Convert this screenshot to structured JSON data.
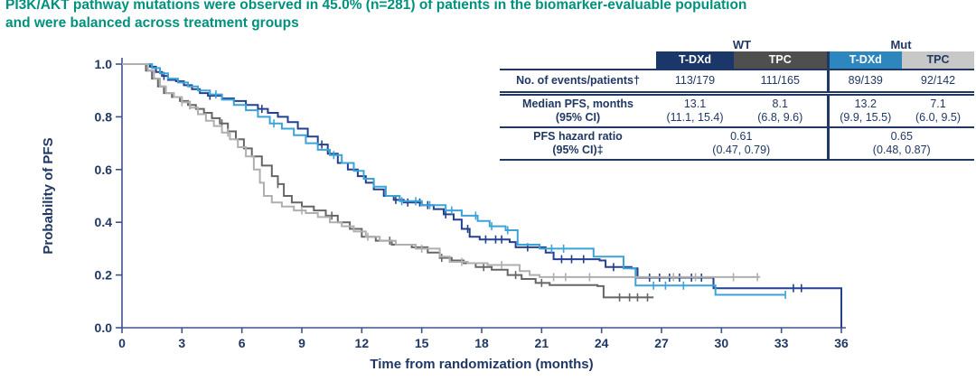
{
  "title": {
    "line1": "PI3K/AKT pathway mutations were observed in 45.0% (n=281) of patients in the biomarker-evaluable population",
    "line2": "and were balanced across treatment groups",
    "color": "#00917E"
  },
  "table": {
    "group_headers": [
      "WT",
      "Mut"
    ],
    "col_headers": [
      "T-DXd",
      "TPC",
      "T-DXd",
      "TPC"
    ],
    "col_colors": {
      "wt_tdxd": "#1B3668",
      "wt_tpc": "#4F4F4F",
      "mut_tdxd": "#2E86BE",
      "mut_tpc": "#C8C8C8"
    },
    "text_color": "#1F3864",
    "rows": {
      "events": {
        "label": "No. of events/patients†",
        "values": [
          "113/179",
          "111/165",
          "89/139",
          "92/142"
        ]
      },
      "median": {
        "label": "Median PFS, months",
        "label2": "(95% CI)",
        "values": [
          "13.1",
          "8.1",
          "13.2",
          "7.1"
        ],
        "values2": [
          "(11.1, 15.4)",
          "(6.8, 9.6)",
          "(9.9, 15.5)",
          "(6.0, 9.5)"
        ]
      },
      "hr": {
        "label": "PFS hazard ratio",
        "label2": "(95% CI)‡",
        "wt_value": "0.61",
        "wt_value2": "(0.47, 0.79)",
        "mut_value": "0.65",
        "mut_value2": "(0.48, 0.87)"
      }
    }
  },
  "chart_data": {
    "type": "line",
    "subtype": "kaplan-meier-step",
    "xlabel": "Time from randomization (months)",
    "ylabel": "Probability of PFS",
    "xlim": [
      0,
      36
    ],
    "ylim": [
      0,
      1
    ],
    "xticks": [
      0,
      3,
      6,
      9,
      12,
      15,
      18,
      21,
      24,
      27,
      30,
      33,
      36
    ],
    "yticks": [
      0.0,
      0.2,
      0.4,
      0.6,
      0.8,
      1.0
    ],
    "grid": false,
    "legend": "none (series identified by table header colors)",
    "axis_color": "#3E5488",
    "series": [
      {
        "name": "T-DXd (WT)",
        "key": "wt-tdxd",
        "color": "#24408E",
        "median_pfs_months": 13.1,
        "steps": [
          [
            0,
            1
          ],
          [
            1.4,
            0.99
          ],
          [
            1.7,
            0.97
          ],
          [
            2.0,
            0.955
          ],
          [
            2.3,
            0.94
          ],
          [
            2.7,
            0.935
          ],
          [
            3.1,
            0.92
          ],
          [
            3.5,
            0.905
          ],
          [
            3.9,
            0.89
          ],
          [
            4.3,
            0.88
          ],
          [
            5.0,
            0.87
          ],
          [
            5.6,
            0.86
          ],
          [
            6.2,
            0.845
          ],
          [
            6.8,
            0.83
          ],
          [
            7.3,
            0.815
          ],
          [
            7.8,
            0.8
          ],
          [
            8.3,
            0.78
          ],
          [
            8.8,
            0.755
          ],
          [
            9.3,
            0.725
          ],
          [
            9.8,
            0.695
          ],
          [
            10.3,
            0.66
          ],
          [
            10.8,
            0.625
          ],
          [
            11.3,
            0.6
          ],
          [
            11.8,
            0.575
          ],
          [
            12.2,
            0.55
          ],
          [
            12.6,
            0.525
          ],
          [
            13.1,
            0.5
          ],
          [
            13.6,
            0.485
          ],
          [
            14.1,
            0.475
          ],
          [
            15.0,
            0.465
          ],
          [
            15.6,
            0.45
          ],
          [
            16.1,
            0.43
          ],
          [
            16.6,
            0.41
          ],
          [
            17.0,
            0.375
          ],
          [
            17.4,
            0.345
          ],
          [
            17.9,
            0.335
          ],
          [
            19.4,
            0.325
          ],
          [
            19.7,
            0.305
          ],
          [
            21.2,
            0.285
          ],
          [
            21.6,
            0.26
          ],
          [
            23.9,
            0.255
          ],
          [
            24.2,
            0.23
          ],
          [
            25.5,
            0.225
          ],
          [
            25.8,
            0.19
          ],
          [
            29.4,
            0.19
          ],
          [
            29.6,
            0.15
          ],
          [
            36,
            0.15
          ],
          [
            36,
            0
          ]
        ],
        "censors": [
          2.1,
          4.4,
          7.0,
          10.0,
          13.7,
          14.3,
          14.9,
          15.3,
          16.2,
          17.3,
          18.2,
          18.7,
          19.0,
          20.3,
          22.0,
          22.5,
          23.1,
          24.6,
          26.4,
          26.9,
          27.4,
          27.9,
          28.5,
          29.0,
          33.6,
          34.0
        ]
      },
      {
        "name": "TPC (WT)",
        "key": "wt-tpc",
        "color": "#666666",
        "median_pfs_months": 8.1,
        "steps": [
          [
            0,
            1
          ],
          [
            1.2,
            0.975
          ],
          [
            1.5,
            0.945
          ],
          [
            1.8,
            0.915
          ],
          [
            2.1,
            0.89
          ],
          [
            2.5,
            0.875
          ],
          [
            2.9,
            0.86
          ],
          [
            3.3,
            0.845
          ],
          [
            3.7,
            0.83
          ],
          [
            4.1,
            0.815
          ],
          [
            4.5,
            0.795
          ],
          [
            4.9,
            0.775
          ],
          [
            5.3,
            0.745
          ],
          [
            5.7,
            0.715
          ],
          [
            6.1,
            0.68
          ],
          [
            6.5,
            0.65
          ],
          [
            7.0,
            0.615
          ],
          [
            7.5,
            0.575
          ],
          [
            7.8,
            0.545
          ],
          [
            8.1,
            0.5
          ],
          [
            8.5,
            0.475
          ],
          [
            9.0,
            0.46
          ],
          [
            9.6,
            0.445
          ],
          [
            10.2,
            0.425
          ],
          [
            10.8,
            0.4
          ],
          [
            11.4,
            0.375
          ],
          [
            12.0,
            0.345
          ],
          [
            12.7,
            0.33
          ],
          [
            13.5,
            0.315
          ],
          [
            14.5,
            0.305
          ],
          [
            15.3,
            0.285
          ],
          [
            15.9,
            0.265
          ],
          [
            16.5,
            0.255
          ],
          [
            17.1,
            0.245
          ],
          [
            17.7,
            0.23
          ],
          [
            18.5,
            0.22
          ],
          [
            19.3,
            0.2
          ],
          [
            20.0,
            0.185
          ],
          [
            20.7,
            0.17
          ],
          [
            21.4,
            0.162
          ],
          [
            23.8,
            0.158
          ],
          [
            24.1,
            0.115
          ],
          [
            26.6,
            0.115
          ]
        ],
        "censors": [
          3.4,
          5.0,
          7.8,
          10.5,
          13.4,
          16.0,
          18.1,
          19.7,
          21.0,
          24.9,
          25.4,
          25.8,
          26.3
        ]
      },
      {
        "name": "T-DXd (Mut)",
        "key": "mut-tdxd",
        "color": "#3BA3D8",
        "median_pfs_months": 13.2,
        "steps": [
          [
            0,
            1
          ],
          [
            1.5,
            0.985
          ],
          [
            1.9,
            0.965
          ],
          [
            2.3,
            0.945
          ],
          [
            2.8,
            0.93
          ],
          [
            3.3,
            0.915
          ],
          [
            3.8,
            0.9
          ],
          [
            4.4,
            0.885
          ],
          [
            5.0,
            0.865
          ],
          [
            5.6,
            0.845
          ],
          [
            6.2,
            0.825
          ],
          [
            6.8,
            0.8
          ],
          [
            7.4,
            0.775
          ],
          [
            8.0,
            0.755
          ],
          [
            8.6,
            0.73
          ],
          [
            9.2,
            0.7
          ],
          [
            9.8,
            0.675
          ],
          [
            10.4,
            0.655
          ],
          [
            11.0,
            0.625
          ],
          [
            11.6,
            0.595
          ],
          [
            12.1,
            0.565
          ],
          [
            12.6,
            0.535
          ],
          [
            13.2,
            0.5
          ],
          [
            13.9,
            0.48
          ],
          [
            15.0,
            0.465
          ],
          [
            16.2,
            0.445
          ],
          [
            17.0,
            0.425
          ],
          [
            17.8,
            0.405
          ],
          [
            18.4,
            0.385
          ],
          [
            19.2,
            0.37
          ],
          [
            19.8,
            0.315
          ],
          [
            20.9,
            0.3
          ],
          [
            23.6,
            0.27
          ],
          [
            25.1,
            0.225
          ],
          [
            25.7,
            0.16
          ],
          [
            29.5,
            0.16
          ],
          [
            29.7,
            0.125
          ],
          [
            33.2,
            0.125
          ]
        ],
        "censors": [
          4.7,
          7.6,
          10.6,
          14.0,
          14.7,
          15.4,
          16.5,
          17.7,
          18.5,
          19.3,
          21.5,
          22.1,
          26.6,
          27.2,
          28.1,
          33.2
        ]
      },
      {
        "name": "TPC (Mut)",
        "key": "mut-tpc",
        "color": "#AFAFAF",
        "median_pfs_months": 7.1,
        "steps": [
          [
            0,
            1
          ],
          [
            1.3,
            0.975
          ],
          [
            1.6,
            0.945
          ],
          [
            1.9,
            0.915
          ],
          [
            2.2,
            0.89
          ],
          [
            2.6,
            0.875
          ],
          [
            3.0,
            0.855
          ],
          [
            3.4,
            0.835
          ],
          [
            3.8,
            0.81
          ],
          [
            4.2,
            0.785
          ],
          [
            4.6,
            0.765
          ],
          [
            5.0,
            0.74
          ],
          [
            5.4,
            0.715
          ],
          [
            5.8,
            0.685
          ],
          [
            6.2,
            0.65
          ],
          [
            6.6,
            0.6
          ],
          [
            6.9,
            0.55
          ],
          [
            7.1,
            0.5
          ],
          [
            7.5,
            0.475
          ],
          [
            8.0,
            0.46
          ],
          [
            8.6,
            0.445
          ],
          [
            9.2,
            0.435
          ],
          [
            9.8,
            0.42
          ],
          [
            10.4,
            0.4
          ],
          [
            11.0,
            0.385
          ],
          [
            11.6,
            0.365
          ],
          [
            12.2,
            0.345
          ],
          [
            12.9,
            0.33
          ],
          [
            13.7,
            0.315
          ],
          [
            14.7,
            0.3
          ],
          [
            15.9,
            0.27
          ],
          [
            16.4,
            0.25
          ],
          [
            17.3,
            0.245
          ],
          [
            18.3,
            0.238
          ],
          [
            19.9,
            0.215
          ],
          [
            20.4,
            0.2
          ],
          [
            20.9,
            0.192
          ],
          [
            31.9,
            0.19
          ]
        ],
        "censors": [
          3.0,
          5.3,
          9.0,
          12.3,
          15.0,
          17.0,
          19.0,
          21.6,
          22.2,
          23.4,
          27.6,
          28.7,
          30.6,
          31.8
        ]
      }
    ]
  }
}
